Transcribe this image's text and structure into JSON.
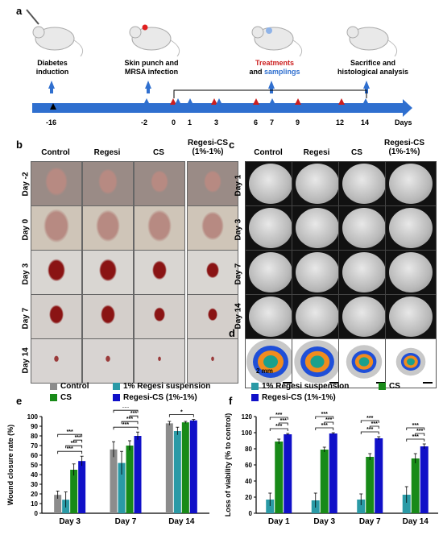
{
  "panels": {
    "a": "a",
    "b": "b",
    "c": "c",
    "d": "d",
    "e": "e",
    "f": "f"
  },
  "timeline": {
    "events": [
      {
        "label": "Diabetes\ninduction"
      },
      {
        "label": "Skin punch and\nMRSA infection"
      },
      {
        "label_red": "Treatments",
        "label_mid": "and ",
        "label_blue": "samplings"
      },
      {
        "label": "Sacrifice and\nhistological analysis"
      }
    ],
    "ticks": [
      "-16",
      "-2",
      "0",
      "1",
      "3",
      "6",
      "7",
      "9",
      "12",
      "14",
      "Days"
    ],
    "colors": {
      "arrow": "#2f6fcf",
      "red": "#cc1f1f",
      "black": "#000000"
    }
  },
  "panel_b": {
    "columns": [
      "Control",
      "Regesi",
      "CS",
      "Regesi-CS\n(1%-1%)"
    ],
    "rows": [
      "Day -2",
      "Day 0",
      "Day 3",
      "Day 7",
      "Day 14"
    ]
  },
  "panel_c": {
    "columns": [
      "Control",
      "Regesi",
      "CS",
      "Regesi-CS\n(1%-1%)"
    ],
    "rows": [
      "Day 1",
      "Day 3",
      "Day 7",
      "Day 14"
    ]
  },
  "panel_d": {
    "scale": "2 mm"
  },
  "legend_e": [
    {
      "name": "Control",
      "color": "#8c8c8c"
    },
    {
      "name": "1% Regesi suspension",
      "color": "#2a9aa6"
    },
    {
      "name": "CS",
      "color": "#188a18"
    },
    {
      "name": "Regesi-CS (1%-1%)",
      "color": "#1010c8"
    }
  ],
  "legend_f": [
    {
      "name": "1% Regesi suspension",
      "color": "#2a9aa6"
    },
    {
      "name": "CS",
      "color": "#188a18"
    },
    {
      "name": "Regesi-CS (1%-1%)",
      "color": "#1010c8"
    }
  ],
  "chart_data": [
    {
      "type": "bar",
      "ylabel": "Wound closure rate (%)",
      "ylim": [
        0,
        100
      ],
      "yticks": [
        "0",
        "10",
        "20",
        "30",
        "40",
        "50",
        "60",
        "70",
        "80",
        "90",
        "100"
      ],
      "categories": [
        "Day 3",
        "Day 7",
        "Day 14"
      ],
      "series": [
        {
          "name": "Control",
          "values": [
            19,
            66,
            93
          ],
          "err": [
            4,
            8,
            2
          ]
        },
        {
          "name": "1% Regesi suspension",
          "values": [
            14,
            52,
            85
          ],
          "err": [
            8,
            12,
            4
          ]
        },
        {
          "name": "CS",
          "values": [
            45,
            70,
            94
          ],
          "err": [
            6,
            5,
            1
          ]
        },
        {
          "name": "Regesi-CS (1%-1%)",
          "values": [
            54,
            80,
            96
          ],
          "err": [
            5,
            4,
            1
          ]
        }
      ],
      "significance": [
        "***",
        "***",
        "***",
        "***",
        "***",
        "***",
        "***",
        "***",
        "*"
      ]
    },
    {
      "type": "bar",
      "ylabel": "Loss of viability (% to control)",
      "ylim": [
        0,
        120
      ],
      "yticks": [
        "0",
        "20",
        "40",
        "60",
        "80",
        "100",
        "120"
      ],
      "categories": [
        "Day 1",
        "Day 3",
        "Day 7",
        "Day 14"
      ],
      "series": [
        {
          "name": "1% Regesi suspension",
          "values": [
            17,
            16,
            17,
            23
          ],
          "err": [
            8,
            9,
            7,
            10
          ]
        },
        {
          "name": "CS",
          "values": [
            89,
            79,
            70,
            68
          ],
          "err": [
            3,
            3,
            4,
            6
          ]
        },
        {
          "name": "Regesi-CS (1%-1%)",
          "values": [
            98,
            99,
            93,
            83
          ],
          "err": [
            1,
            1,
            2,
            3
          ]
        }
      ],
      "significance": [
        "***",
        "***",
        "***",
        "***",
        "***",
        "***",
        "***",
        "***",
        "***",
        "***",
        "***",
        "***"
      ]
    }
  ]
}
